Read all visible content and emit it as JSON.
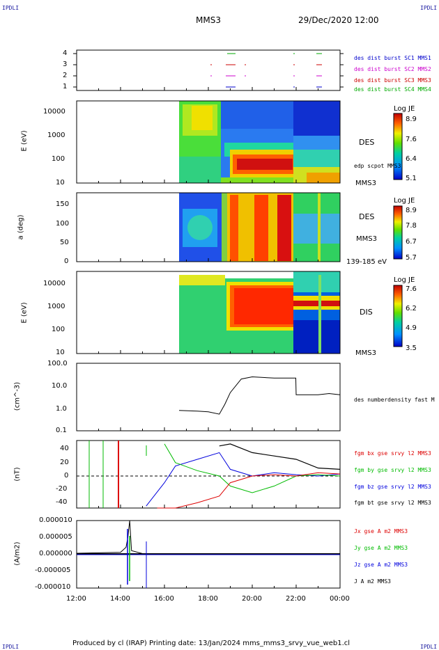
{
  "corners": {
    "tl": "IPDLI",
    "tr": "IPDLI",
    "bl": "IPDLI",
    "br": "IPDLI"
  },
  "header": {
    "mission": "MMS3",
    "date": "29/Dec/2020 12:00"
  },
  "footer": "Produced by cl (IRAP)   Printing date: 13/Jan/2024   mms_mms3_srvy_vue_web1.cl",
  "x_axis": {
    "ticks": [
      "12:00",
      "14:00",
      "16:00",
      "18:00",
      "20:00",
      "22:00",
      "00:00"
    ]
  },
  "colors": {
    "mms1": "#0000cc",
    "mms2": "#cc00cc",
    "mms3": "#cc0000",
    "mms4": "#00aa00",
    "bx": "#dd0000",
    "by": "#00bb00",
    "bz": "#0000dd",
    "bt": "#000000"
  },
  "panels": {
    "burst": {
      "yticks": [
        "4",
        "3",
        "2",
        "1"
      ],
      "labels": [
        "des dist burst SC1 MMS1",
        "des dist burst SC2 MMS2",
        "des dist burst SC3 MMS3",
        "des dist burst SC4 MMS4"
      ]
    },
    "des_energy": {
      "ylabel": "E (eV)",
      "yticks": [
        "10000",
        "1000",
        "100",
        "10"
      ],
      "label": "DES",
      "label2": "edp scpot MMS3",
      "label3": "MMS3",
      "cb_title": "Log JE",
      "cb_ticks": [
        "8.9",
        "7.6",
        "6.4",
        "5.1"
      ]
    },
    "des_pitch": {
      "ylabel": "a (deg)",
      "yticks": [
        "150",
        "100",
        "50",
        "0"
      ],
      "label": "DES",
      "label2": "MMS3",
      "label3": "139-185 eV",
      "cb_title": "Log JE",
      "cb_ticks": [
        "8.9",
        "7.8",
        "6.7",
        "5.7"
      ]
    },
    "dis_energy": {
      "ylabel": "E (eV)",
      "yticks": [
        "10000",
        "1000",
        "100",
        "10"
      ],
      "label": "DIS",
      "label2": "MMS3",
      "cb_title": "Log JE",
      "cb_ticks": [
        "7.6",
        "6.2",
        "4.9",
        "3.5"
      ]
    },
    "density": {
      "ylabel": "(cm^-3)",
      "yticks": [
        "100.0",
        "10.0",
        "1.0",
        "0.1"
      ],
      "label": "des numberdensity fast M"
    },
    "bfield": {
      "ylabel": "(nT)",
      "yticks": [
        "40",
        "20",
        "0",
        "-20",
        "-40"
      ],
      "labels": [
        "fgm bx gse srvy l2 MMS3",
        "fgm by gse srvy l2 MMS3",
        "fgm bz gse srvy l2 MMS3",
        "fgm bt gse srvy l2 MMS3"
      ]
    },
    "current": {
      "ylabel": "(A/m2)",
      "yticks": [
        "0.000010",
        "0.000005",
        "0.000000",
        "-0.000005",
        "-0.000010"
      ],
      "labels": [
        "Jx gse A m2 MMS3",
        "Jy gse A m2 MMS3",
        "Jz gse A m2 MMS3",
        "J A m2 MMS3"
      ]
    }
  },
  "chart_data": {
    "type": "line",
    "x_range": [
      "12:00",
      "00:00"
    ],
    "density": {
      "x": [
        "16:40",
        "17:30",
        "18:00",
        "18:30",
        "18:45",
        "19:00",
        "19:30",
        "20:00",
        "21:00",
        "21:59",
        "22:00",
        "22:30",
        "23:00",
        "23:30",
        "00:00"
      ],
      "y": [
        0.8,
        0.75,
        0.7,
        0.55,
        1.5,
        5,
        20,
        25,
        22,
        22,
        4,
        4,
        4,
        4.5,
        4
      ]
    },
    "bfield": {
      "bx": {
        "x": [
          "15:40",
          "16:30",
          "17:30",
          "18:30",
          "19:00",
          "20:00",
          "21:00",
          "22:00",
          "23:00",
          "00:00"
        ],
        "y": [
          -55,
          -50,
          -40,
          -30,
          -10,
          0,
          2,
          0,
          5,
          3
        ]
      },
      "by": {
        "x": [
          "16:00",
          "16:30",
          "17:30",
          "18:30",
          "19:00",
          "20:00",
          "21:00",
          "22:00",
          "23:00",
          "00:00"
        ],
        "y": [
          48,
          20,
          8,
          0,
          -15,
          -25,
          -15,
          0,
          2,
          0
        ]
      },
      "bz": {
        "x": [
          "15:10",
          "16:00",
          "16:30",
          "17:30",
          "18:30",
          "19:00",
          "20:00",
          "21:00",
          "22:00",
          "23:00",
          "00:00"
        ],
        "y": [
          -45,
          -10,
          15,
          25,
          35,
          10,
          0,
          5,
          2,
          0,
          3
        ]
      },
      "bt": {
        "x": [
          "18:30",
          "19:00",
          "20:00",
          "21:00",
          "22:00",
          "23:00",
          "00:00"
        ],
        "y": [
          45,
          48,
          35,
          30,
          25,
          12,
          10
        ]
      }
    },
    "current": {
      "j": {
        "x": [
          "12:00",
          "14:00",
          "14:15",
          "14:20",
          "14:25",
          "14:30",
          "15:00",
          "16:00",
          "22:00",
          "00:00"
        ],
        "y": [
          2e-07,
          5e-07,
          2e-06,
          5e-06,
          1e-05,
          1e-06,
          1e-07,
          1e-07,
          1e-07,
          1e-07
        ]
      }
    },
    "burst": {
      "sc4": [
        "18:30-18:50",
        "22:00",
        "23:00-23:20"
      ],
      "sc3": [
        "18:10",
        "18:30-19:00",
        "19:45",
        "22:00",
        "23:00-23:20"
      ],
      "sc2": [
        "18:10",
        "18:30-19:00",
        "19:45",
        "22:00",
        "23:00-23:20"
      ],
      "sc1": [
        "18:30-18:50",
        "22:00",
        "23:00-23:20"
      ]
    }
  }
}
